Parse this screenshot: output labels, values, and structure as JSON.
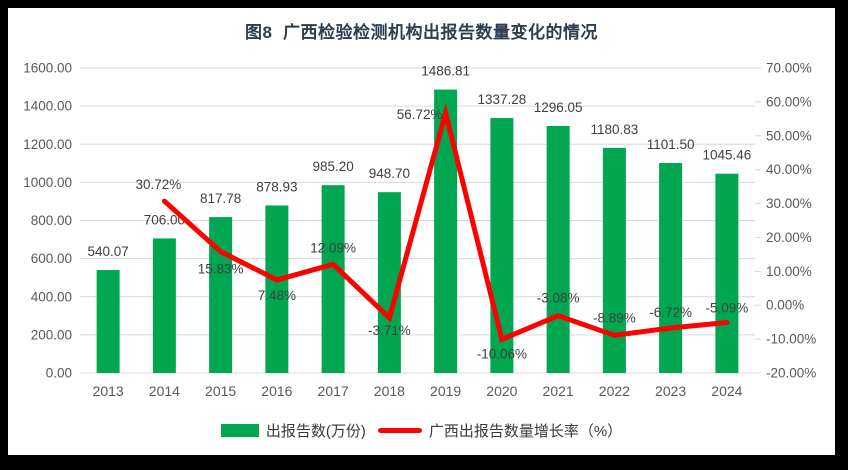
{
  "window": {
    "background_color": "#000000",
    "panel_color": "#FFFFFF"
  },
  "title": "图8  广西检验检测机构出报告数量变化的情况",
  "legend": {
    "position": "bottom",
    "items": [
      {
        "swatch": "bar",
        "label": "出报告数(万份)",
        "color": "#00A650"
      },
      {
        "swatch": "line",
        "label": "广西出报告数量增长率（%）",
        "color": "#FF0000"
      }
    ]
  },
  "chart_data": {
    "type": "bar+line combo",
    "title": "图8  广西检验检测机构出报告数量变化的情况",
    "categories": [
      "2013",
      "2014",
      "2015",
      "2016",
      "2017",
      "2018",
      "2019",
      "2020",
      "2021",
      "2022",
      "2023",
      "2024"
    ],
    "series": [
      {
        "name": "出报告数(万份)",
        "type": "bar",
        "axis": "left",
        "color": "#00A650",
        "values": [
          540.07,
          706.0,
          817.78,
          878.93,
          985.2,
          948.7,
          1486.81,
          1337.28,
          1296.05,
          1180.83,
          1101.5,
          1045.46
        ],
        "data_labels": [
          "540.07",
          "706.00",
          "817.78",
          "878.93",
          "985.20",
          "948.70",
          "1486.81",
          "1337.28",
          "1296.05",
          "1180.83",
          "1101.50",
          "1045.46"
        ]
      },
      {
        "name": "广西出报告数量增长率（%）",
        "type": "line",
        "axis": "right",
        "color": "#FF0000",
        "values": [
          null,
          30.72,
          15.83,
          7.48,
          12.09,
          -3.71,
          56.72,
          -10.06,
          -3.08,
          -8.89,
          -6.72,
          -5.09
        ],
        "data_labels": [
          null,
          "30.72%",
          "15.83%",
          "7.48%",
          "12.09%",
          "-3.71%",
          "56.72%",
          "-10.06%",
          "-3.08%",
          "-8.89%",
          "-6.72%",
          "-5.09%"
        ],
        "label_offsets": [
          null,
          [
            -6,
            -17
          ],
          [
            0,
            17
          ],
          [
            0,
            15
          ],
          [
            0,
            -17
          ],
          [
            0,
            12
          ],
          [
            -26,
            1
          ],
          [
            0,
            14
          ],
          [
            0,
            -18
          ],
          [
            0,
            -18
          ],
          [
            0,
            -16
          ],
          [
            0,
            -15
          ]
        ]
      }
    ],
    "left_axis": {
      "min": 0,
      "max": 1600,
      "step": 200,
      "tick_labels": [
        "0.00",
        "200.00",
        "400.00",
        "600.00",
        "800.00",
        "1000.00",
        "1200.00",
        "1400.00",
        "1600.00"
      ]
    },
    "right_axis": {
      "min": -20,
      "max": 70,
      "step": 10,
      "tick_labels": [
        "-20.00%",
        "-10.00%",
        "0.00%",
        "10.00%",
        "20.00%",
        "30.00%",
        "40.00%",
        "50.00%",
        "60.00%",
        "70.00%"
      ]
    },
    "grid": true,
    "gridline_color": "#D9D9D9",
    "axis_text_color": "#595959",
    "data_label_color": "#404040",
    "legend_position": "bottom"
  }
}
